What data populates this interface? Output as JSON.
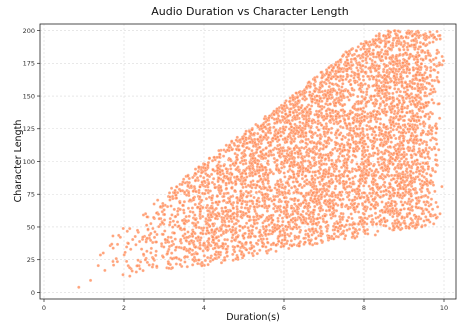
{
  "chart_data": {
    "type": "scatter",
    "title": "Audio Duration vs Character Length",
    "xlabel": "Duration(s)",
    "ylabel": "Character Length",
    "xlim": [
      -0.1,
      10.3
    ],
    "ylim": [
      -5,
      205
    ],
    "xticks": [
      0,
      2,
      4,
      6,
      8,
      10
    ],
    "yticks": [
      0,
      25,
      50,
      75,
      100,
      125,
      150,
      175,
      200
    ],
    "grid": true,
    "color": "#ff8c5a",
    "point_edge_color": "#fff0e8",
    "series": [
      {
        "points_description_range": {
          "x_min": 0.4,
          "x_max": 10.0,
          "upper_bound": [
            [
              0.4,
              14
            ],
            [
              2,
              50
            ],
            [
              4,
              100
            ],
            [
              6,
              145
            ],
            [
              7.6,
              185
            ],
            [
              8.5,
              200
            ],
            [
              10.0,
              200
            ]
          ],
          "lower_bound": [
            [
              0.4,
              2
            ],
            [
              1,
              2
            ],
            [
              2,
              10
            ],
            [
              4,
              20
            ],
            [
              6,
              32
            ],
            [
              7,
              38
            ],
            [
              8,
              42
            ],
            [
              9,
              48
            ],
            [
              10.0,
              52
            ]
          ]
        }
      }
    ]
  }
}
